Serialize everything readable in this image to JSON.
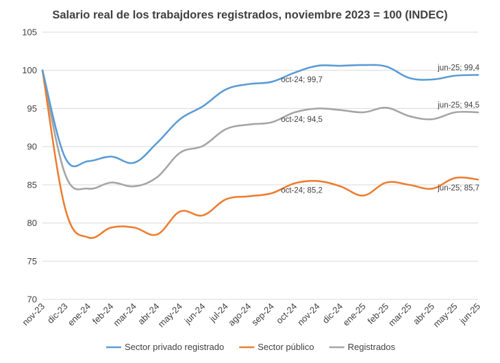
{
  "chart_data": {
    "type": "line",
    "title": "Salario real de los trabajdores registrados, noviembre 2023 = 100 (INDEC)",
    "xlabel": "",
    "ylabel": "",
    "ylim": [
      70,
      105
    ],
    "yticks": [
      70,
      75,
      80,
      85,
      90,
      95,
      100,
      105
    ],
    "grid": "horizontal",
    "legend_position": "bottom",
    "categories": [
      "nov-23",
      "dic-23",
      "ene-24",
      "feb-24",
      "mar-24",
      "abr-24",
      "may-24",
      "jun-24",
      "jul-24",
      "ago-24",
      "sep-24",
      "oct-24",
      "nov-24",
      "dic-24",
      "ene-25",
      "feb-25",
      "mar-25",
      "abr-25",
      "may-25",
      "jun-25"
    ],
    "series": [
      {
        "name": "Sector privado registrado",
        "color": "#5B9BD5",
        "values": [
          100,
          88.5,
          88.1,
          88.7,
          87.9,
          90.5,
          93.6,
          95.3,
          97.5,
          98.2,
          98.5,
          99.7,
          100.6,
          100.6,
          100.7,
          100.5,
          99.0,
          98.8,
          99.3,
          99.4
        ]
      },
      {
        "name": "Sector público",
        "color": "#ED7D31",
        "values": [
          100,
          81.8,
          78.1,
          79.4,
          79.4,
          78.5,
          81.5,
          81.0,
          83.1,
          83.5,
          83.9,
          85.2,
          85.5,
          84.8,
          83.6,
          85.3,
          85.0,
          84.5,
          85.9,
          85.7
        ]
      },
      {
        "name": "Registrados",
        "color": "#A5A5A5",
        "values": [
          100,
          86.3,
          84.5,
          85.3,
          84.8,
          86.0,
          89.2,
          90.1,
          92.3,
          92.9,
          93.2,
          94.5,
          95.0,
          94.8,
          94.5,
          95.1,
          94.0,
          93.6,
          94.5,
          94.5
        ]
      }
    ],
    "annotations": [
      {
        "series": 0,
        "category": "oct-24",
        "text": "oct-24; 99,7",
        "placement": "below-right"
      },
      {
        "series": 0,
        "category": "jun-25",
        "text": "jun-25; 99,4",
        "placement": "above-left"
      },
      {
        "series": 2,
        "category": "oct-24",
        "text": "oct-24; 94,5",
        "placement": "below-right"
      },
      {
        "series": 2,
        "category": "jun-25",
        "text": "jun-25; 94,5",
        "placement": "above-left"
      },
      {
        "series": 1,
        "category": "oct-24",
        "text": "oct-24; 85,2",
        "placement": "below-right"
      },
      {
        "series": 1,
        "category": "jun-25",
        "text": "jun-25; 85,7",
        "placement": "below-left"
      }
    ]
  }
}
